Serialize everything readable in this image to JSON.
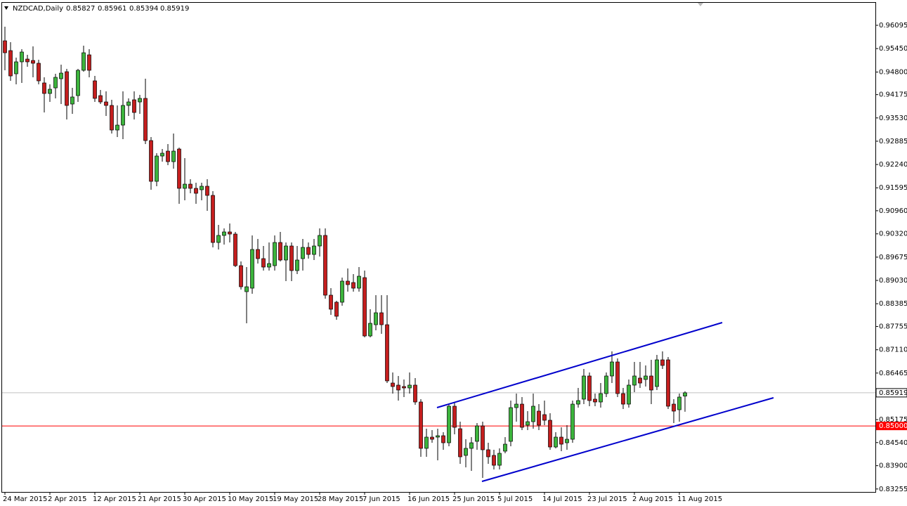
{
  "chart_data": {
    "type": "candlestick",
    "title": "NZDCAD,Daily",
    "up_color": "#3cb43c",
    "down_color": "#c41e1e",
    "categories": [
      "24 Mar 2015",
      null,
      null,
      null,
      null,
      null,
      null,
      null,
      "2 Apr 2015",
      null,
      null,
      null,
      null,
      null,
      null,
      null,
      "12 Apr 2015",
      null,
      null,
      null,
      null,
      null,
      null,
      null,
      "21 Apr 2015",
      null,
      null,
      null,
      null,
      null,
      null,
      null,
      "30 Apr 2015",
      null,
      null,
      null,
      null,
      null,
      null,
      null,
      "10 May 2015",
      null,
      null,
      null,
      null,
      null,
      null,
      null,
      "19 May 2015",
      null,
      null,
      null,
      null,
      null,
      null,
      null,
      "28 May 2015",
      null,
      null,
      null,
      null,
      null,
      null,
      null,
      "7 Jun 2015",
      null,
      null,
      null,
      null,
      null,
      null,
      null,
      "16 Jun 2015",
      null,
      null,
      null,
      null,
      null,
      null,
      null,
      "25 Jun 2015",
      null,
      null,
      null,
      null,
      null,
      null,
      null,
      "5 Jul 2015",
      null,
      null,
      null,
      null,
      null,
      null,
      null,
      "14 Jul 2015",
      null,
      null,
      null,
      null,
      null,
      null,
      null,
      "23 Jul 2015",
      null,
      null,
      null,
      null,
      null,
      null,
      null,
      "2 Aug 2015",
      null,
      null,
      null,
      null,
      null,
      null,
      null,
      "11 Aug 2015",
      null
    ],
    "open": [
      0.95666,
      0.95394,
      0.94752,
      0.95083,
      0.9516,
      0.95121,
      0.95044,
      0.94499,
      0.94207,
      0.94362,
      0.94615,
      0.9481,
      0.93915,
      0.94148,
      0.94849,
      0.95277,
      0.94557,
      0.94148,
      0.93973,
      0.93876,
      0.93195,
      0.93331,
      0.93876,
      0.94032,
      0.93973,
      0.94071,
      0.92903,
      0.91774,
      0.92475,
      0.92611,
      0.92319,
      0.92669,
      0.9158,
      0.91696,
      0.9158,
      0.91541,
      0.91638,
      0.91385,
      0.90081,
      0.90276,
      0.90373,
      0.90315,
      0.89439,
      0.88719,
      0.88816,
      0.89887,
      0.89634,
      0.894,
      0.89439,
      0.90081,
      0.89595,
      0.89984,
      0.89303,
      0.89634,
      0.89945,
      0.8975,
      0.89984,
      0.90276,
      0.88622,
      0.88427,
      0.88427,
      0.89011,
      0.88972,
      0.88816,
      0.89108,
      0.87493,
      0.87804,
      0.88135,
      0.87804,
      0.86189,
      0.86131,
      0.86092,
      0.86053,
      0.86131,
      0.85664,
      0.8438,
      0.84691,
      0.84691,
      0.8473,
      0.84535,
      0.85547,
      0.84924,
      0.84185,
      0.8438,
      0.84574,
      0.85002,
      0.84341,
      0.84185,
      0.83912,
      0.84302,
      0.84574,
      0.85508,
      0.85605,
      0.85022,
      0.85119,
      0.85411,
      0.85314,
      0.85158,
      0.84418,
      0.84691,
      0.84535,
      0.84632,
      0.85605,
      0.85742,
      0.86384,
      0.85742,
      0.85664,
      0.85897,
      0.86384,
      0.86773,
      0.85897,
      0.85605,
      0.86131,
      0.86326,
      0.86287,
      0.86384,
      0.86092,
      0.86831,
      0.86831,
      0.85605,
      0.8545,
      0.85827
    ],
    "high": [
      0.96056,
      0.95627,
      0.95199,
      0.95433,
      0.95277,
      0.95511,
      0.95141,
      0.94654,
      0.9446,
      0.94752,
      0.95005,
      0.94888,
      0.94362,
      0.94888,
      0.9553,
      0.95433,
      0.94693,
      0.94304,
      0.94265,
      0.94032,
      0.93876,
      0.94265,
      0.94071,
      0.94265,
      0.94168,
      0.94615,
      0.93,
      0.92553,
      0.92669,
      0.92806,
      0.93098,
      0.92708,
      0.92416,
      0.91833,
      0.91735,
      0.91735,
      0.91833,
      0.91502,
      0.90568,
      0.9047,
      0.90607,
      0.90373,
      0.89556,
      0.894,
      0.90276,
      0.90179,
      0.89984,
      0.90081,
      0.90276,
      0.90373,
      0.90081,
      0.90081,
      0.89984,
      0.90179,
      0.90081,
      0.90179,
      0.9047,
      0.9047,
      0.88816,
      0.88466,
      0.89108,
      0.89361,
      0.89206,
      0.894,
      0.89303,
      0.88233,
      0.88622,
      0.88622,
      0.88622,
      0.86481,
      0.86384,
      0.86287,
      0.86481,
      0.86326,
      0.85742,
      0.84924,
      0.84885,
      0.84924,
      0.84827,
      0.85605,
      0.85664,
      0.85119,
      0.84632,
      0.84691,
      0.8508,
      0.85119,
      0.84535,
      0.84341,
      0.8438,
      0.84691,
      0.85703,
      0.85897,
      0.858,
      0.85411,
      0.85897,
      0.85605,
      0.85703,
      0.85353,
      0.84827,
      0.84963,
      0.85022,
      0.85703,
      0.86053,
      0.86578,
      0.86481,
      0.85897,
      0.86189,
      0.86481,
      0.87065,
      0.8687,
      0.86053,
      0.86287,
      0.86773,
      0.86773,
      0.86676,
      0.86831,
      0.86968,
      0.87065,
      0.86909,
      0.85742,
      0.85897,
      0.85961
    ],
    "low": [
      0.94849,
      0.94557,
      0.9446,
      0.94499,
      0.94946,
      0.94654,
      0.9446,
      0.93681,
      0.93973,
      0.94071,
      0.93915,
      0.93487,
      0.93642,
      0.93973,
      0.9481,
      0.94654,
      0.93973,
      0.93915,
      0.93584,
      0.93098,
      0.93,
      0.92942,
      0.93584,
      0.93487,
      0.93642,
      0.92806,
      0.91541,
      0.91638,
      0.92319,
      0.92222,
      0.92125,
      0.91152,
      0.91249,
      0.91443,
      0.91152,
      0.91249,
      0.90957,
      0.89945,
      0.89887,
      0.90023,
      0.90081,
      0.894,
      0.88777,
      0.87843,
      0.88661,
      0.89497,
      0.89303,
      0.89303,
      0.89303,
      0.89556,
      0.89011,
      0.89011,
      0.89206,
      0.89303,
      0.89634,
      0.89595,
      0.89692,
      0.88524,
      0.88077,
      0.87941,
      0.8833,
      0.88719,
      0.88719,
      0.88719,
      0.87454,
      0.87454,
      0.87649,
      0.87551,
      0.86189,
      0.85897,
      0.85703,
      0.858,
      0.85897,
      0.85586,
      0.84146,
      0.84146,
      0.84535,
      0.84049,
      0.84341,
      0.84438,
      0.84769,
      0.83951,
      0.83854,
      0.83757,
      0.84341,
      0.83562,
      0.83951,
      0.83796,
      0.83796,
      0.84243,
      0.84438,
      0.85119,
      0.84885,
      0.84885,
      0.84924,
      0.84885,
      0.85022,
      0.84341,
      0.8438,
      0.84302,
      0.84341,
      0.84535,
      0.85508,
      0.85605,
      0.85547,
      0.85547,
      0.85508,
      0.858,
      0.86189,
      0.858,
      0.85469,
      0.85508,
      0.85936,
      0.86053,
      0.86092,
      0.85605,
      0.85995,
      0.86578,
      0.85469,
      0.8508,
      0.85119,
      0.85394
    ],
    "close": [
      0.95335,
      0.94693,
      0.95083,
      0.95355,
      0.95083,
      0.95044,
      0.94557,
      0.94207,
      0.94324,
      0.94654,
      0.94771,
      0.93876,
      0.9411,
      0.94849,
      0.95335,
      0.94849,
      0.94071,
      0.93973,
      0.93876,
      0.93195,
      0.93331,
      0.93876,
      0.93973,
      0.93681,
      0.94071,
      0.92903,
      0.91774,
      0.92475,
      0.92553,
      0.92319,
      0.92611,
      0.9158,
      0.91696,
      0.9158,
      0.91443,
      0.91638,
      0.91385,
      0.90081,
      0.90276,
      0.90373,
      0.90315,
      0.89439,
      0.88855,
      0.88855,
      0.89887,
      0.89634,
      0.894,
      0.89497,
      0.90081,
      0.89595,
      0.89984,
      0.89303,
      0.89595,
      0.89945,
      0.8975,
      0.89984,
      0.90276,
      0.88622,
      0.88233,
      0.88038,
      0.89011,
      0.88914,
      0.88816,
      0.89147,
      0.87493,
      0.87843,
      0.88135,
      0.87804,
      0.86248,
      0.86092,
      0.85995,
      0.86053,
      0.86131,
      0.85664,
      0.8438,
      0.84691,
      0.84632,
      0.8473,
      0.84535,
      0.85547,
      0.84963,
      0.84146,
      0.8438,
      0.84535,
      0.85002,
      0.84341,
      0.84146,
      0.83912,
      0.84243,
      0.84496,
      0.85508,
      0.85605,
      0.84963,
      0.85119,
      0.85547,
      0.85022,
      0.85158,
      0.84418,
      0.84691,
      0.84496,
      0.84632,
      0.85605,
      0.85703,
      0.86384,
      0.85703,
      0.85664,
      0.85897,
      0.86384,
      0.86773,
      0.85897,
      0.85605,
      0.86131,
      0.86384,
      0.86189,
      0.86384,
      0.85995,
      0.86831,
      0.86676,
      0.85547,
      0.85411,
      0.858,
      0.85919
    ],
    "ylim": [
      0.83173,
      0.96737
    ],
    "yticks": [
      0.96095,
      {
        "value": 0.9545,
        "label": "0.95450"
      },
      {
        "value": 0.948,
        "label": "0.94800"
      },
      0.94175,
      {
        "value": 0.9353,
        "label": "0.93530"
      },
      0.92885,
      {
        "value": 0.9224,
        "label": "0.92240"
      },
      0.91595,
      {
        "value": 0.9096,
        "label": "0.90960"
      },
      {
        "value": 0.9032,
        "label": "0.90320"
      },
      0.89675,
      {
        "value": 0.8903,
        "label": "0.89030"
      },
      0.88385,
      0.87755,
      {
        "value": 0.8711,
        "label": "0.87110"
      },
      0.86465,
      0.85175,
      {
        "value": 0.8454,
        "label": "0.84540"
      },
      {
        "value": 0.839,
        "label": "0.83900"
      },
      0.83255
    ],
    "level_lines": [
      {
        "value": 0.85,
        "label": "0.85000",
        "color": "#ff0000"
      }
    ]
  }
}
